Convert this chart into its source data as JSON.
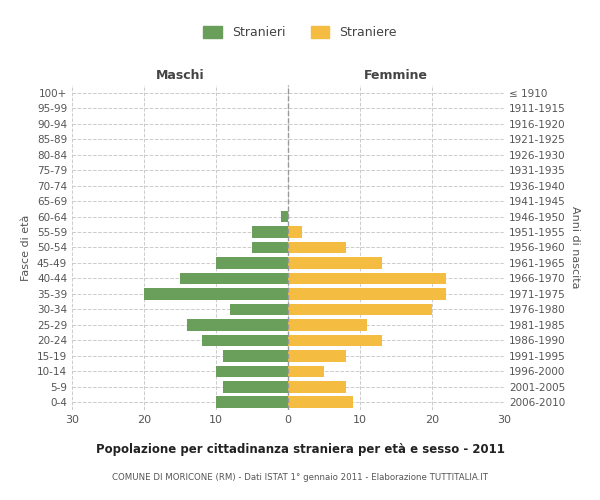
{
  "age_groups": [
    "0-4",
    "5-9",
    "10-14",
    "15-19",
    "20-24",
    "25-29",
    "30-34",
    "35-39",
    "40-44",
    "45-49",
    "50-54",
    "55-59",
    "60-64",
    "65-69",
    "70-74",
    "75-79",
    "80-84",
    "85-89",
    "90-94",
    "95-99",
    "100+"
  ],
  "birth_years": [
    "2006-2010",
    "2001-2005",
    "1996-2000",
    "1991-1995",
    "1986-1990",
    "1981-1985",
    "1976-1980",
    "1971-1975",
    "1966-1970",
    "1961-1965",
    "1956-1960",
    "1951-1955",
    "1946-1950",
    "1941-1945",
    "1936-1940",
    "1931-1935",
    "1926-1930",
    "1921-1925",
    "1916-1920",
    "1911-1915",
    "≤ 1910"
  ],
  "males": [
    10,
    9,
    10,
    9,
    12,
    14,
    8,
    20,
    15,
    10,
    5,
    5,
    1,
    0,
    0,
    0,
    0,
    0,
    0,
    0,
    0
  ],
  "females": [
    9,
    8,
    5,
    8,
    13,
    11,
    20,
    22,
    22,
    13,
    8,
    2,
    0,
    0,
    0,
    0,
    0,
    0,
    0,
    0,
    0
  ],
  "male_color": "#6a9e5b",
  "female_color": "#f5bc42",
  "title": "Popolazione per cittadinanza straniera per età e sesso - 2011",
  "subtitle": "COMUNE DI MORICONE (RM) - Dati ISTAT 1° gennaio 2011 - Elaborazione TUTTITALIA.IT",
  "legend_male": "Stranieri",
  "legend_female": "Straniere",
  "label_maschi": "Maschi",
  "label_femmine": "Femmine",
  "ylabel_left": "Fasce di età",
  "ylabel_right": "Anni di nascita",
  "xlim": 30,
  "bg_color": "#ffffff",
  "grid_color": "#cccccc"
}
